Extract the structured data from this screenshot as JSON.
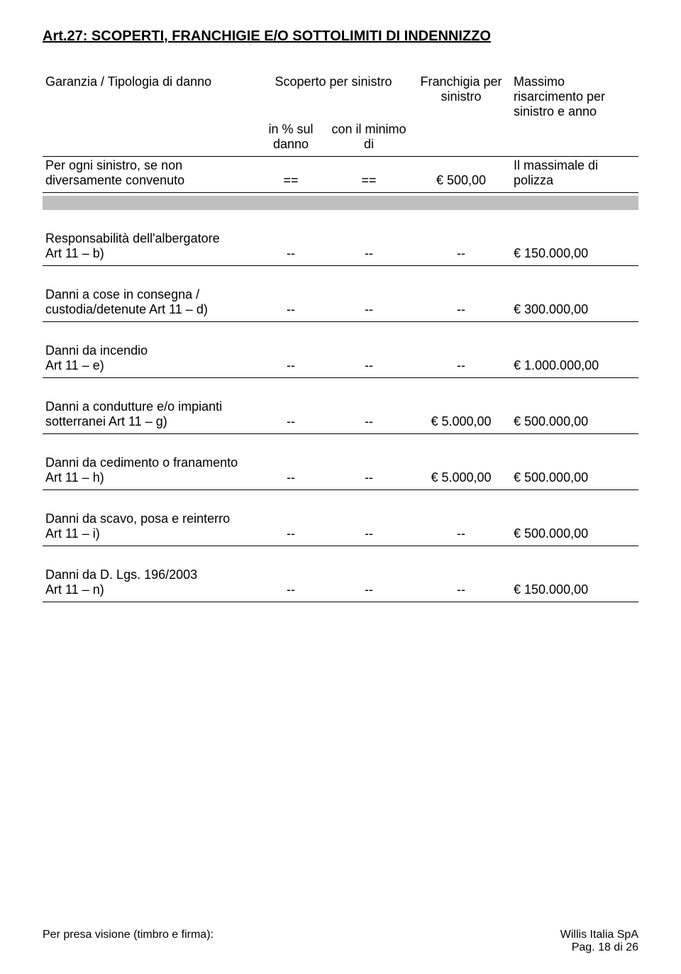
{
  "title": "Art.27: SCOPERTI, FRANCHIGIE E/O SOTTOLIMITI DI INDENNIZZO",
  "header": {
    "col1": "Garanzia / Tipologia di danno",
    "col2_top": "Scoperto per sinistro",
    "col2a": "in % sul danno",
    "col2b": "con il minimo di",
    "col3": "Franchigia per sinistro",
    "col4": "Massimo risarcimento per sinistro e anno"
  },
  "per_ogni": {
    "label": "Per ogni sinistro, se non diversamente convenuto",
    "a": "==",
    "b": "==",
    "c": "€ 500,00",
    "d": "Il massimale di polizza"
  },
  "rows": [
    {
      "label1": "Responsabilità dell'albergatore",
      "label2": "Art 11 – b)",
      "a": "--",
      "b": "--",
      "c": "--",
      "d": "€ 150.000,00"
    },
    {
      "label1": "Danni a cose in consegna / custodia/detenute Art 11 – d)",
      "label2": "",
      "a": "--",
      "b": "--",
      "c": "--",
      "d": "€ 300.000,00"
    },
    {
      "label1": "Danni da incendio",
      "label2": "Art 11 – e)",
      "a": "--",
      "b": "--",
      "c": "--",
      "d": "€ 1.000.000,00"
    },
    {
      "label1": "Danni a condutture e/o impianti sotterranei Art 11 – g)",
      "label2": "",
      "a": "--",
      "b": "--",
      "c": "€ 5.000,00",
      "d": "€ 500.000,00"
    },
    {
      "label1": "Danni da cedimento o franamento",
      "label2": "Art 11 – h)",
      "a": "--",
      "b": "--",
      "c": "€ 5.000,00",
      "d": "€ 500.000,00"
    },
    {
      "label1": "Danni da scavo, posa e reinterro",
      "label2": "Art 11 – i)",
      "a": "--",
      "b": "--",
      "c": "--",
      "d": "€ 500.000,00"
    },
    {
      "label1": "Danni da D. Lgs. 196/2003",
      "label2": "Art 11 – n)",
      "a": "--",
      "b": "--",
      "c": "--",
      "d": "€ 150.000,00"
    }
  ],
  "footer": {
    "left": "Per presa visione (timbro e firma):",
    "right1": "Willis Italia SpA",
    "right2": "Pag. 18 di 26"
  },
  "colors": {
    "gray_bar": "#bfbfbf",
    "text": "#000000",
    "bg": "#ffffff"
  }
}
